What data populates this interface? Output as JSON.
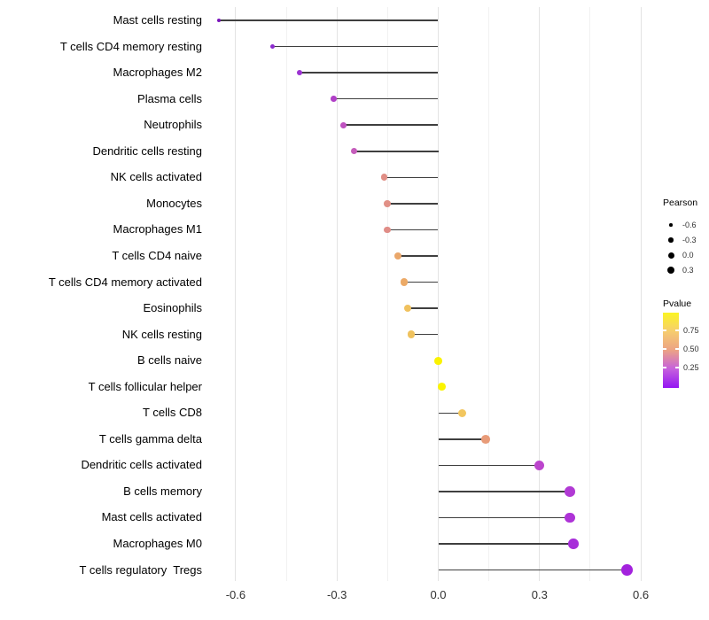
{
  "chart_data": {
    "type": "lollipop",
    "title": "",
    "xlabel": "",
    "ylabel": "",
    "xlim": [
      -0.69,
      0.64
    ],
    "x_ticks": [
      -0.6,
      -0.3,
      0.0,
      0.3,
      0.6
    ],
    "x_tick_labels": [
      "-0.6",
      "-0.3",
      "0.0",
      "0.3",
      "0.6"
    ],
    "grid": "vertical major and minor, white background",
    "rows": [
      {
        "label": "Mast cells resting",
        "pearson": -0.65,
        "color": "#7a15bb"
      },
      {
        "label": "T cells CD4 memory resting",
        "pearson": -0.49,
        "color": "#8c2bce"
      },
      {
        "label": "Macrophages M2",
        "pearson": -0.41,
        "color": "#9c33d2"
      },
      {
        "label": "Plasma cells",
        "pearson": -0.31,
        "color": "#b03fc7"
      },
      {
        "label": "Neutrophils",
        "pearson": -0.28,
        "color": "#bf52c0"
      },
      {
        "label": "Dendritic cells resting",
        "pearson": -0.25,
        "color": "#c55dbb"
      },
      {
        "label": "NK cells activated",
        "pearson": -0.16,
        "color": "#e08e85"
      },
      {
        "label": "Monocytes",
        "pearson": -0.15,
        "color": "#e19086"
      },
      {
        "label": "Macrophages M1",
        "pearson": -0.15,
        "color": "#e08d87"
      },
      {
        "label": "T cells CD4 naive",
        "pearson": -0.12,
        "color": "#eaa76a"
      },
      {
        "label": "T cells CD4 memory activated",
        "pearson": -0.1,
        "color": "#ecaa67"
      },
      {
        "label": "Eosinophils",
        "pearson": -0.09,
        "color": "#f0c15e"
      },
      {
        "label": "NK cells resting",
        "pearson": -0.08,
        "color": "#efc25e"
      },
      {
        "label": "B cells naive",
        "pearson": 0.0,
        "color": "#faf200"
      },
      {
        "label": "T cells follicular helper",
        "pearson": 0.01,
        "color": "#fbf400"
      },
      {
        "label": "T cells CD8",
        "pearson": 0.07,
        "color": "#f2c65f"
      },
      {
        "label": "T cells gamma delta",
        "pearson": 0.14,
        "color": "#e89b78"
      },
      {
        "label": "Dendritic cells activated",
        "pearson": 0.3,
        "color": "#bc45cd"
      },
      {
        "label": "B cells memory",
        "pearson": 0.39,
        "color": "#b13ad4"
      },
      {
        "label": "Mast cells activated",
        "pearson": 0.39,
        "color": "#ae33d7"
      },
      {
        "label": "Macrophages M0",
        "pearson": 0.4,
        "color": "#a72dd9"
      },
      {
        "label": "T cells regulatory  Tregs",
        "pearson": 0.56,
        "color": "#a322dd"
      }
    ],
    "legends": {
      "size": {
        "title": "Pearson",
        "items": [
          {
            "label": "-0.6",
            "diameter": 3.5
          },
          {
            "label": "-0.3",
            "diameter": 5.5
          },
          {
            "label": "0.0",
            "diameter": 7.0
          },
          {
            "label": "0.3",
            "diameter": 8.5
          }
        ]
      },
      "color": {
        "title": "Pvalue",
        "tick_labels": [
          "0.75",
          "0.50",
          "0.25"
        ],
        "gradient_stops_top_to_bottom": [
          "#fbf523",
          "#f6cd6f",
          "#eca285",
          "#c560dd",
          "#9415f2"
        ]
      }
    }
  }
}
